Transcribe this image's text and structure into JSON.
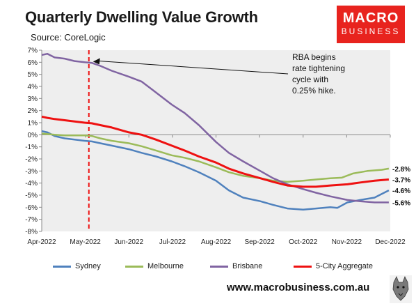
{
  "header": {
    "title": "Quarterly Dwelling Value Growth",
    "source": "Source: CoreLogic",
    "logo_line1": "MACRO",
    "logo_line2": "BUSINESS",
    "website": "www.macrobusiness.com.au"
  },
  "colors": {
    "logo_bg": "#e8231e",
    "plot_bg": "#eeeeee",
    "sydney": "#4f81bd",
    "melbourne": "#9bbb59",
    "brisbane": "#8064a2",
    "aggregate": "#ee1111",
    "marker": "#ee1111"
  },
  "chart_data": {
    "type": "line",
    "title": "Quarterly Dwelling Value Growth",
    "xlabel": "",
    "ylabel": "",
    "ylim": [
      -8,
      7
    ],
    "y_ticks": [
      "7%",
      "6%",
      "5%",
      "4%",
      "3%",
      "2%",
      "1%",
      "0%",
      "-1%",
      "-2%",
      "-3%",
      "-4%",
      "-5%",
      "-6%",
      "-7%",
      "-8%"
    ],
    "x_ticks": [
      "Apr-2022",
      "May-2022",
      "Jun-2022",
      "Jul-2022",
      "Aug-2022",
      "Sep-2022",
      "Oct-2022",
      "Nov-2022",
      "Dec-2022"
    ],
    "grid": false,
    "legend_position": "bottom",
    "series": [
      {
        "name": "Sydney",
        "color": "#4f81bd",
        "end_label": "-4.6%",
        "points": [
          [
            "2022-04-01",
            0.3
          ],
          [
            "2022-04-05",
            0.2
          ],
          [
            "2022-04-10",
            -0.1
          ],
          [
            "2022-04-17",
            -0.3
          ],
          [
            "2022-04-24",
            -0.4
          ],
          [
            "2022-05-01",
            -0.5
          ],
          [
            "2022-05-06",
            -0.55
          ],
          [
            "2022-05-12",
            -0.7
          ],
          [
            "2022-05-20",
            -0.9
          ],
          [
            "2022-06-01",
            -1.2
          ],
          [
            "2022-06-10",
            -1.5
          ],
          [
            "2022-06-20",
            -1.8
          ],
          [
            "2022-07-01",
            -2.2
          ],
          [
            "2022-07-10",
            -2.6
          ],
          [
            "2022-07-20",
            -3.1
          ],
          [
            "2022-08-01",
            -3.8
          ],
          [
            "2022-08-10",
            -4.6
          ],
          [
            "2022-08-20",
            -5.2
          ],
          [
            "2022-09-01",
            -5.5
          ],
          [
            "2022-09-10",
            -5.8
          ],
          [
            "2022-09-20",
            -6.1
          ],
          [
            "2022-10-01",
            -6.2
          ],
          [
            "2022-10-10",
            -6.1
          ],
          [
            "2022-10-20",
            -6.0
          ],
          [
            "2022-10-25",
            -6.05
          ],
          [
            "2022-11-01",
            -5.6
          ],
          [
            "2022-11-10",
            -5.4
          ],
          [
            "2022-11-20",
            -5.2
          ],
          [
            "2022-11-25",
            -4.9
          ],
          [
            "2022-11-30",
            -4.6
          ]
        ]
      },
      {
        "name": "Melbourne",
        "color": "#9bbb59",
        "end_label": "-2.8%",
        "points": [
          [
            "2022-04-01",
            0.1
          ],
          [
            "2022-04-10",
            0.0
          ],
          [
            "2022-04-17",
            -0.05
          ],
          [
            "2022-05-01",
            -0.05
          ],
          [
            "2022-05-06",
            -0.1
          ],
          [
            "2022-05-12",
            -0.3
          ],
          [
            "2022-05-20",
            -0.5
          ],
          [
            "2022-06-01",
            -0.7
          ],
          [
            "2022-06-10",
            -0.95
          ],
          [
            "2022-06-20",
            -1.3
          ],
          [
            "2022-07-01",
            -1.7
          ],
          [
            "2022-07-10",
            -1.9
          ],
          [
            "2022-07-20",
            -2.2
          ],
          [
            "2022-08-01",
            -2.7
          ],
          [
            "2022-08-10",
            -3.1
          ],
          [
            "2022-08-20",
            -3.4
          ],
          [
            "2022-09-01",
            -3.6
          ],
          [
            "2022-09-10",
            -3.8
          ],
          [
            "2022-09-20",
            -3.9
          ],
          [
            "2022-10-01",
            -3.8
          ],
          [
            "2022-10-10",
            -3.7
          ],
          [
            "2022-10-20",
            -3.6
          ],
          [
            "2022-10-28",
            -3.55
          ],
          [
            "2022-11-05",
            -3.2
          ],
          [
            "2022-11-15",
            -3.0
          ],
          [
            "2022-11-25",
            -2.9
          ],
          [
            "2022-11-30",
            -2.8
          ]
        ]
      },
      {
        "name": "Brisbane",
        "color": "#8064a2",
        "end_label": "-5.6%",
        "points": [
          [
            "2022-04-01",
            6.6
          ],
          [
            "2022-04-05",
            6.7
          ],
          [
            "2022-04-10",
            6.4
          ],
          [
            "2022-04-17",
            6.3
          ],
          [
            "2022-04-24",
            6.1
          ],
          [
            "2022-05-01",
            6.0
          ],
          [
            "2022-05-06",
            5.95
          ],
          [
            "2022-05-12",
            5.7
          ],
          [
            "2022-05-20",
            5.3
          ],
          [
            "2022-06-01",
            4.8
          ],
          [
            "2022-06-10",
            4.4
          ],
          [
            "2022-06-20",
            3.5
          ],
          [
            "2022-07-01",
            2.5
          ],
          [
            "2022-07-10",
            1.8
          ],
          [
            "2022-07-20",
            0.8
          ],
          [
            "2022-08-01",
            -0.6
          ],
          [
            "2022-08-10",
            -1.5
          ],
          [
            "2022-08-20",
            -2.2
          ],
          [
            "2022-09-01",
            -3.0
          ],
          [
            "2022-09-10",
            -3.6
          ],
          [
            "2022-09-20",
            -4.1
          ],
          [
            "2022-10-01",
            -4.5
          ],
          [
            "2022-10-10",
            -4.8
          ],
          [
            "2022-10-20",
            -5.1
          ],
          [
            "2022-11-01",
            -5.4
          ],
          [
            "2022-11-10",
            -5.5
          ],
          [
            "2022-11-20",
            -5.6
          ],
          [
            "2022-11-30",
            -5.6
          ]
        ]
      },
      {
        "name": "5-City Aggregate",
        "color": "#ee1111",
        "end_label": "-3.7%",
        "points": [
          [
            "2022-04-01",
            1.5
          ],
          [
            "2022-04-05",
            1.4
          ],
          [
            "2022-04-10",
            1.3
          ],
          [
            "2022-04-17",
            1.2
          ],
          [
            "2022-04-24",
            1.1
          ],
          [
            "2022-05-01",
            1.0
          ],
          [
            "2022-05-06",
            0.95
          ],
          [
            "2022-05-12",
            0.8
          ],
          [
            "2022-05-20",
            0.6
          ],
          [
            "2022-06-01",
            0.2
          ],
          [
            "2022-06-10",
            0.0
          ],
          [
            "2022-06-20",
            -0.4
          ],
          [
            "2022-07-01",
            -0.9
          ],
          [
            "2022-07-10",
            -1.3
          ],
          [
            "2022-07-20",
            -1.8
          ],
          [
            "2022-08-01",
            -2.3
          ],
          [
            "2022-08-10",
            -2.8
          ],
          [
            "2022-08-20",
            -3.2
          ],
          [
            "2022-09-01",
            -3.6
          ],
          [
            "2022-09-10",
            -3.9
          ],
          [
            "2022-09-20",
            -4.2
          ],
          [
            "2022-10-01",
            -4.3
          ],
          [
            "2022-10-10",
            -4.3
          ],
          [
            "2022-10-20",
            -4.2
          ],
          [
            "2022-11-01",
            -4.1
          ],
          [
            "2022-11-10",
            -3.95
          ],
          [
            "2022-11-20",
            -3.8
          ],
          [
            "2022-11-30",
            -3.7
          ]
        ]
      }
    ],
    "markers": [
      {
        "x": "2022-05-04",
        "style": "dashed-vertical",
        "color": "#ee1111"
      }
    ],
    "annotations": [
      {
        "text_lines": [
          "RBA begins",
          "rate tightening",
          "cycle with",
          "0.25% hike."
        ],
        "target_x": "2022-05-04",
        "target_y": 6.0
      }
    ]
  }
}
